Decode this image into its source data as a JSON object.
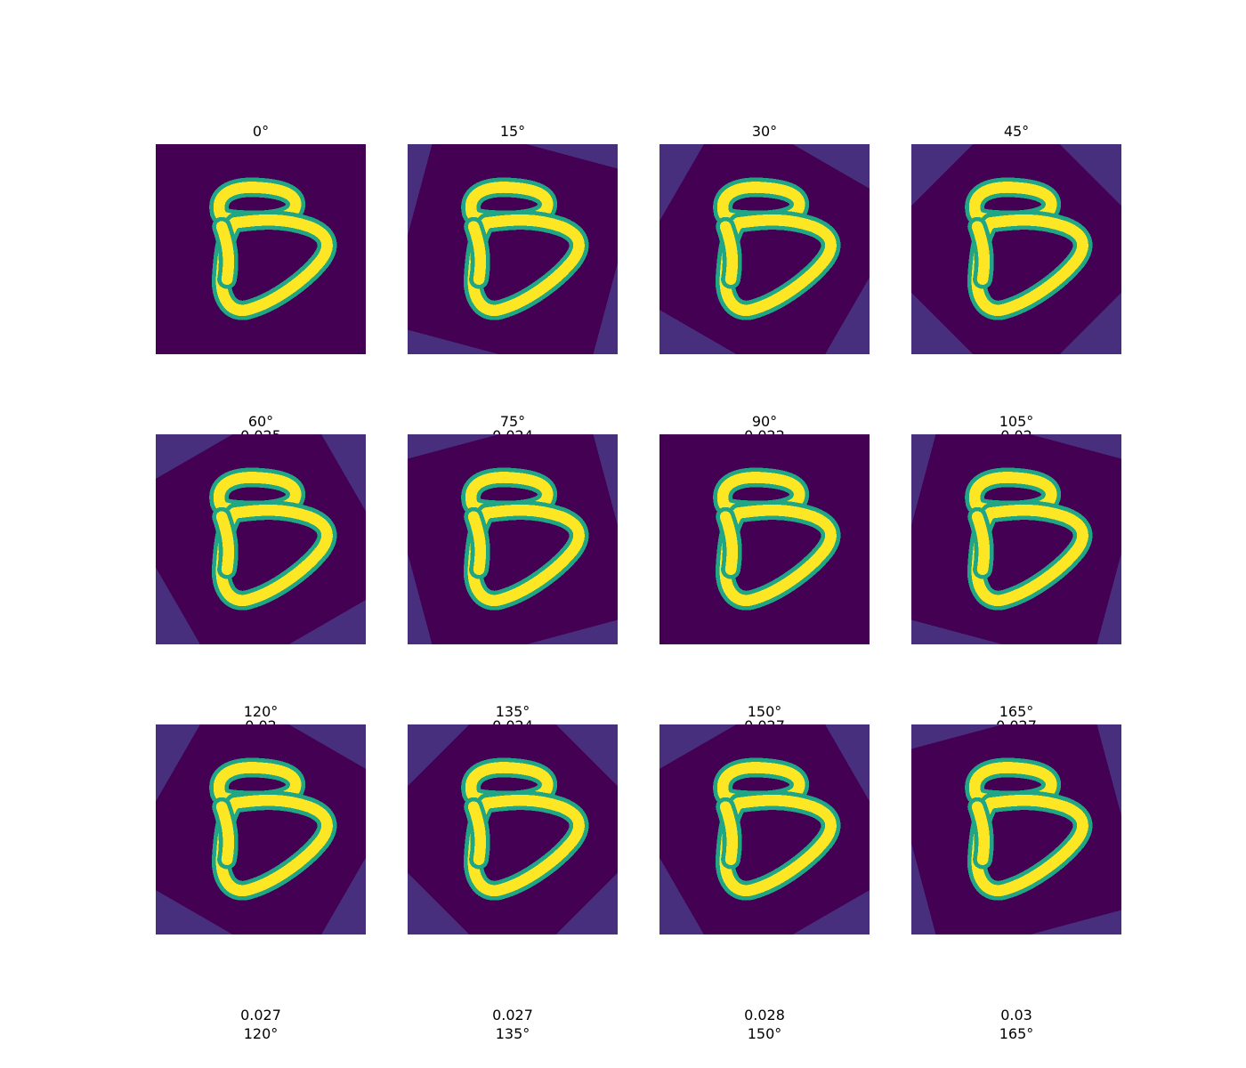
{
  "colors": {
    "background": "#440154",
    "corner": "#472f7d",
    "stroke_mid": "#21a685",
    "stroke_bright": "#fde725"
  },
  "chart_data": {
    "type": "image-grid",
    "title": "",
    "grid": {
      "rows": 3,
      "cols": 4
    },
    "panels": [
      {
        "title": "0°",
        "subtitle": "",
        "angle": 0
      },
      {
        "title": "15°",
        "subtitle": "",
        "angle": 15
      },
      {
        "title": "30°",
        "subtitle": "",
        "angle": 30
      },
      {
        "title": "45°",
        "subtitle": "",
        "angle": 45
      },
      {
        "title": "60°",
        "subtitle": "0.025",
        "angle": 60
      },
      {
        "title": "75°",
        "subtitle": "0.024",
        "angle": 75
      },
      {
        "title": "90°",
        "subtitle": "0.022",
        "angle": 90
      },
      {
        "title": "105°",
        "subtitle": "0.02",
        "angle": 105
      },
      {
        "title": "120°",
        "subtitle": "0.02",
        "angle": 120
      },
      {
        "title": "135°",
        "subtitle": "0.024",
        "angle": 135
      },
      {
        "title": "150°",
        "subtitle": "0.027",
        "angle": 150
      },
      {
        "title": "165°",
        "subtitle": "0.027",
        "angle": 165
      }
    ],
    "bottom_labels": [
      {
        "value": "0.027",
        "angle": "120°"
      },
      {
        "value": "0.027",
        "angle": "135°"
      },
      {
        "value": "0.028",
        "angle": "150°"
      },
      {
        "value": "0.03",
        "angle": "165°"
      }
    ]
  }
}
